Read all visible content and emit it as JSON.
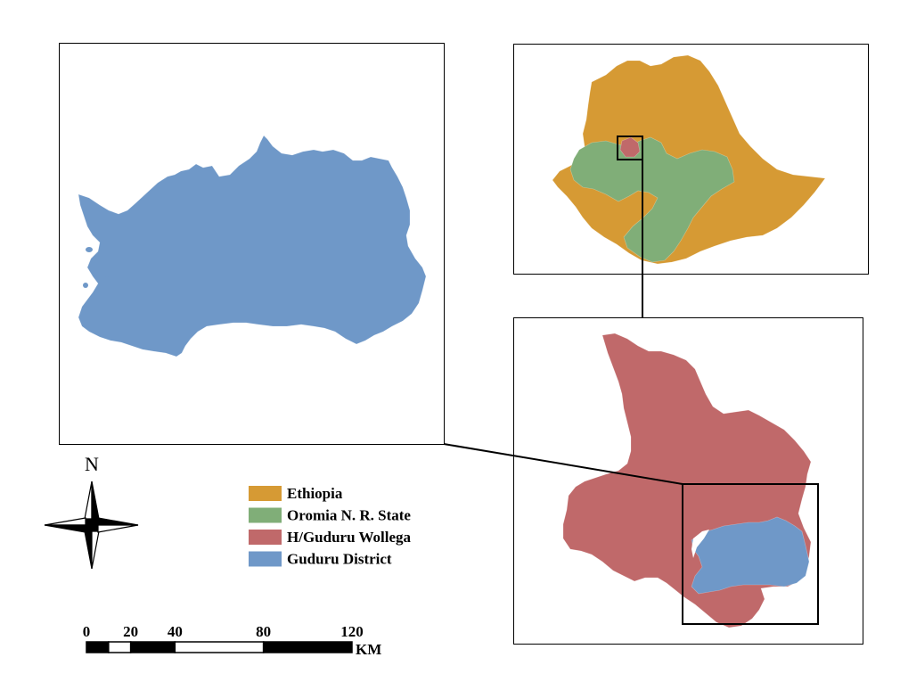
{
  "north_arrow": {
    "label": "N",
    "icon": "compass-rose-icon"
  },
  "legend": {
    "items": [
      {
        "label": "Ethiopia",
        "color": "#d69a34"
      },
      {
        "label": "Oromia N. R. State",
        "color": "#80ae78"
      },
      {
        "label": "H/Guduru Wollega",
        "color": "#c0696a"
      },
      {
        "label": "Guduru District",
        "color": "#6f98c8"
      }
    ]
  },
  "scale_bar": {
    "tick_labels": [
      "0",
      "20",
      "40",
      "80",
      "120"
    ],
    "tick_values": [
      0,
      20,
      40,
      80,
      120
    ],
    "unit": "KM"
  }
}
